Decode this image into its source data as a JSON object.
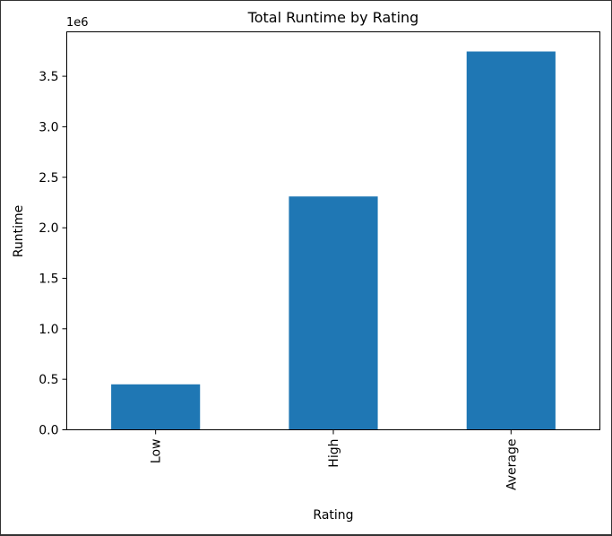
{
  "chart_data": {
    "type": "bar",
    "title": "Total Runtime by Rating",
    "xlabel": "Rating",
    "ylabel": "Runtime",
    "offset_label": "1e6",
    "categories": [
      "Low",
      "High",
      "Average"
    ],
    "values": [
      450000,
      2310000,
      3745000
    ],
    "ylim": [
      0,
      3940000
    ],
    "yticks": [
      0,
      500000,
      1000000,
      1500000,
      2000000,
      2500000,
      3000000,
      3500000
    ],
    "ytick_labels": [
      "0.0",
      "0.5",
      "1.0",
      "1.5",
      "2.0",
      "2.5",
      "3.0",
      "3.5"
    ],
    "bar_color": "#1f77b4",
    "grid": false,
    "legend": "none"
  }
}
